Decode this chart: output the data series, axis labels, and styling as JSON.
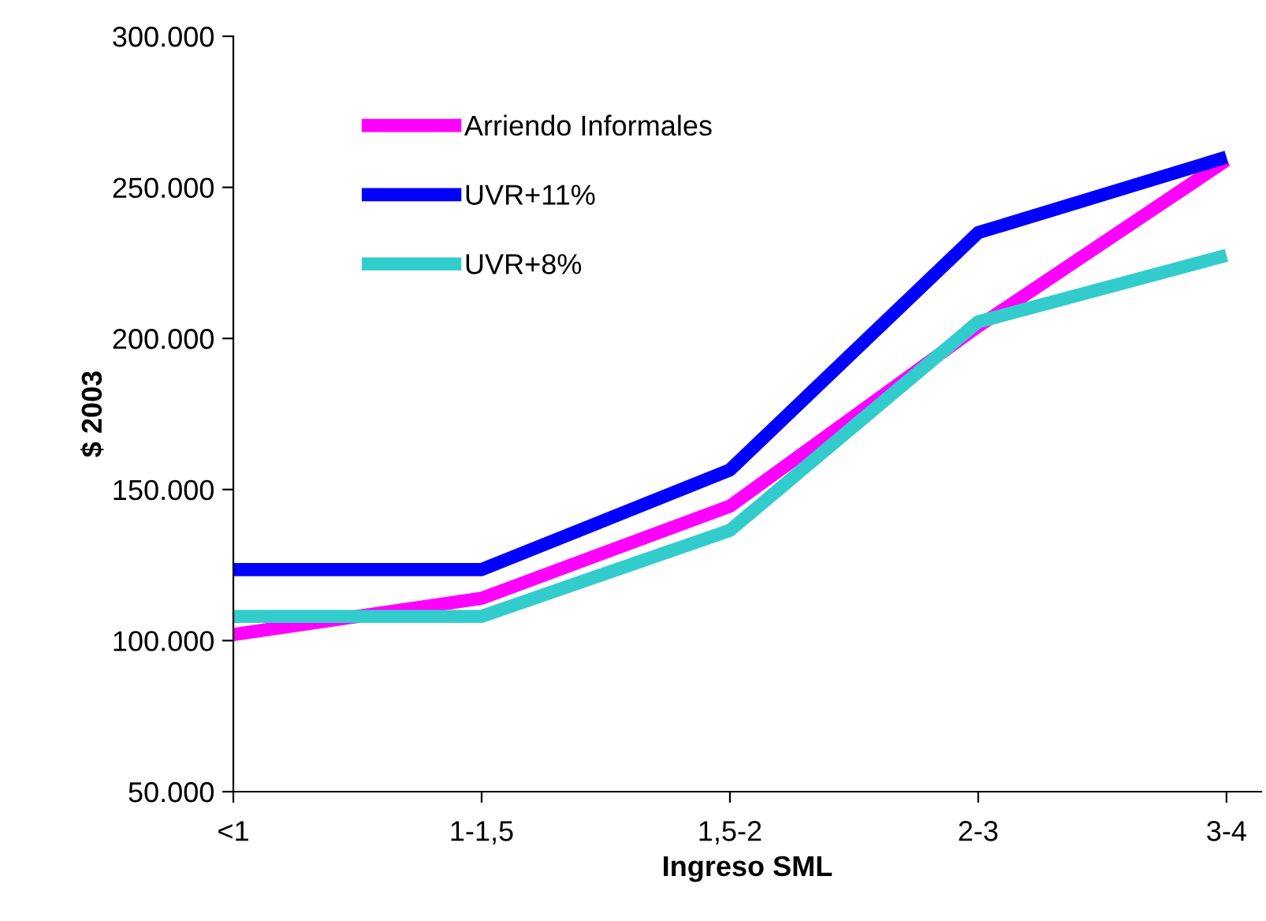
{
  "chart_data": {
    "type": "line",
    "xlabel": "Ingreso SML",
    "ylabel": "$ 2003",
    "categories": [
      "<1",
      "1-1,5",
      "1,5-2",
      "2-3",
      "3-4"
    ],
    "series": [
      {
        "name": "Arriendo Informales",
        "color": "#ff00ff",
        "values": [
          102000,
          114000,
          144500,
          204000,
          259000
        ]
      },
      {
        "name": "UVR+11%",
        "color": "#0000ff",
        "values": [
          123500,
          123500,
          156500,
          235000,
          260000
        ]
      },
      {
        "name": "UVR+8%",
        "color": "#33cccc",
        "values": [
          108000,
          108000,
          136500,
          205500,
          227500
        ]
      }
    ],
    "ylim": [
      50000,
      300000
    ],
    "yticks": [
      {
        "value": 50000,
        "label": "50.000"
      },
      {
        "value": 100000,
        "label": "100.000"
      },
      {
        "value": 150000,
        "label": "150.000"
      },
      {
        "value": 200000,
        "label": "200.000"
      },
      {
        "value": 250000,
        "label": "250.000"
      },
      {
        "value": 300000,
        "label": "300.000"
      }
    ],
    "grid": false,
    "legend": "top left",
    "marker": "none",
    "line_style": "solid"
  }
}
